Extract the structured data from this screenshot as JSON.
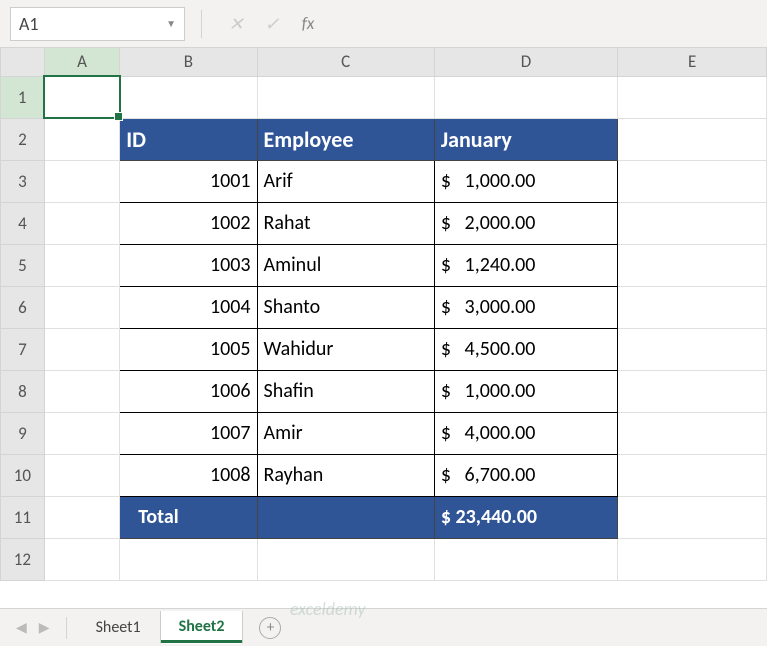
{
  "formula_bar": {
    "name_box": "A1",
    "cancel_icon": "✕",
    "confirm_icon": "✓",
    "fx_label": "fx",
    "formula_value": ""
  },
  "columns": {
    "labels": [
      "A",
      "B",
      "C",
      "D",
      "E"
    ],
    "widths": [
      76,
      138,
      178,
      184,
      150
    ],
    "selected_index": 0
  },
  "rows": {
    "count": 12,
    "height": 42,
    "selected_index": 0
  },
  "active_cell": {
    "row": 0,
    "col": 0
  },
  "table": {
    "header_bg": "#2f5597",
    "header_fg": "#ffffff",
    "start_row": 1,
    "start_col": 1,
    "headers": [
      "ID",
      "Employee",
      "January"
    ],
    "data": [
      {
        "id": "1001",
        "employee": "Arif",
        "amount": "$   1,000.00"
      },
      {
        "id": "1002",
        "employee": "Rahat",
        "amount": "$   2,000.00"
      },
      {
        "id": "1003",
        "employee": "Aminul",
        "amount": "$   1,240.00"
      },
      {
        "id": "1004",
        "employee": "Shanto",
        "amount": "$   3,000.00"
      },
      {
        "id": "1005",
        "employee": "Wahidur",
        "amount": "$   4,500.00"
      },
      {
        "id": "1006",
        "employee": "Shafin",
        "amount": "$   1,000.00"
      },
      {
        "id": "1007",
        "employee": "Amir",
        "amount": "$   4,000.00"
      },
      {
        "id": "1008",
        "employee": "Rayhan",
        "amount": "$   6,700.00"
      }
    ],
    "total": {
      "label": "Total",
      "amount": "$ 23,440.00"
    }
  },
  "tabs": {
    "items": [
      "Sheet1",
      "Sheet2"
    ],
    "active_index": 1,
    "add_label": "+"
  },
  "watermark": "exceldemy"
}
